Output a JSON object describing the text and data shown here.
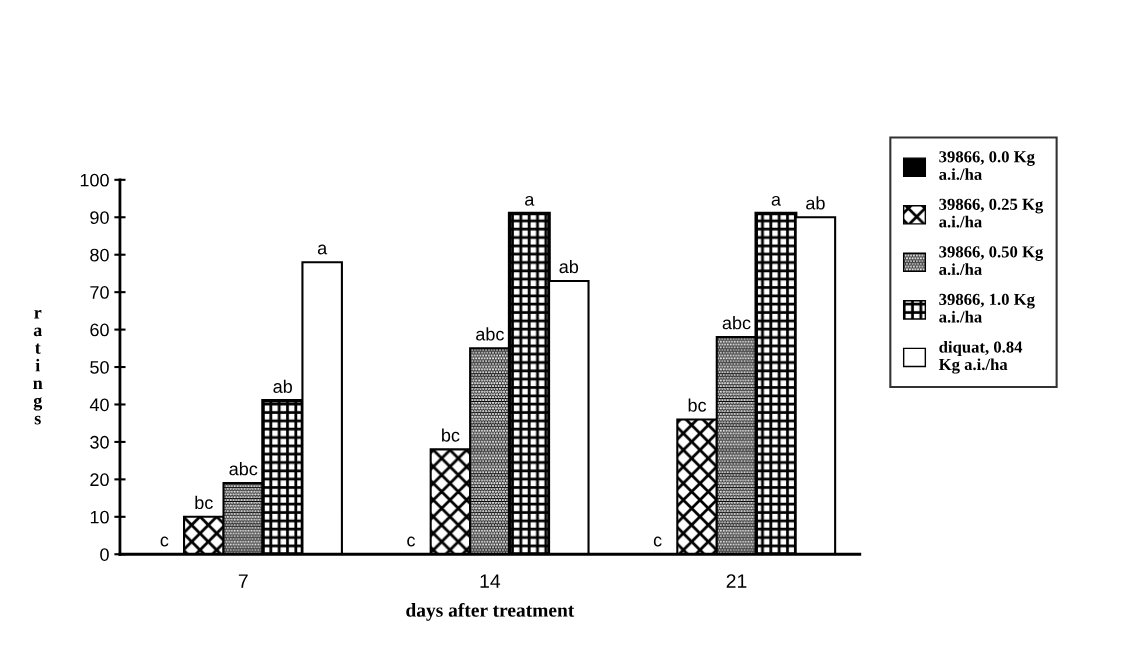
{
  "chart_data": {
    "type": "bar",
    "xlabel": "days after treatment",
    "ylabel": "ratings",
    "categories": [
      "7",
      "14",
      "21"
    ],
    "series": [
      {
        "name": "39866, 0.0 Kg\na.i./ha",
        "color": "#000000",
        "values": [
          0,
          0,
          0
        ],
        "value_labels": [
          "c",
          "c",
          "c"
        ]
      },
      {
        "name": "39866, 0.25 Kg\na.i./ha",
        "color": "#000000",
        "values": [
          10,
          28,
          36
        ],
        "value_labels": [
          "bc",
          "bc",
          "bc"
        ]
      },
      {
        "name": "39866, 0.50 Kg\na.i./ha",
        "color": "#000000",
        "values": [
          19,
          55,
          58
        ],
        "value_labels": [
          "abc",
          "abc",
          "abc"
        ]
      },
      {
        "name": "39866, 1.0 Kg\na.i./ha",
        "color": "#000000",
        "values": [
          41,
          91,
          91
        ],
        "value_labels": [
          "ab",
          "a",
          "a"
        ]
      },
      {
        "name": "diquat, 0.84\nKg a.i./ha",
        "color": "#ffffff",
        "values": [
          78,
          73,
          90
        ],
        "value_labels": [
          "a",
          "ab",
          "ab"
        ]
      }
    ],
    "ylim": [
      0,
      100
    ],
    "yticks": [
      0,
      10,
      20,
      30,
      40,
      50,
      60,
      70,
      80,
      90,
      100
    ],
    "grid": false,
    "legend": "right"
  }
}
